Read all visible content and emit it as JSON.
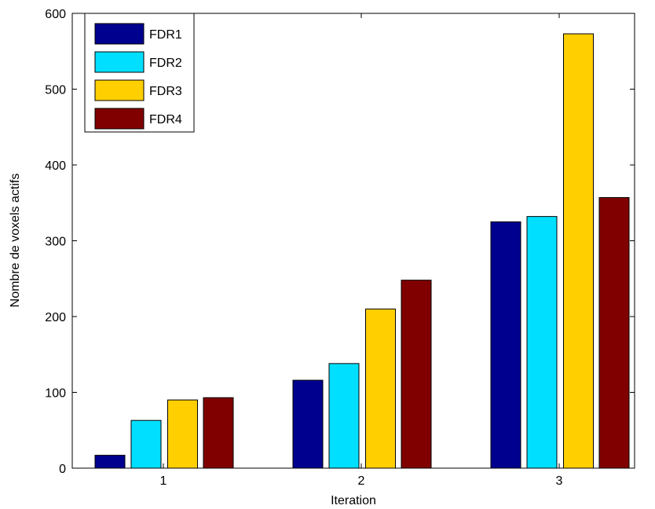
{
  "chart_data": {
    "type": "bar",
    "xlabel": "Iteration",
    "ylabel": "Nombre de voxels actifs",
    "categories": [
      "1",
      "2",
      "3"
    ],
    "ylim": [
      0,
      600
    ],
    "yticks": [
      0,
      100,
      200,
      300,
      400,
      500,
      600
    ],
    "grid": false,
    "legend_position": "top-left",
    "series": [
      {
        "name": "FDR1",
        "color": "#00008f",
        "values": [
          17,
          116,
          325
        ]
      },
      {
        "name": "FDR2",
        "color": "#00dfff",
        "values": [
          63,
          138,
          332
        ]
      },
      {
        "name": "FDR3",
        "color": "#ffcf00",
        "values": [
          90,
          210,
          573
        ]
      },
      {
        "name": "FDR4",
        "color": "#800000",
        "values": [
          93,
          248,
          357
        ]
      }
    ]
  }
}
